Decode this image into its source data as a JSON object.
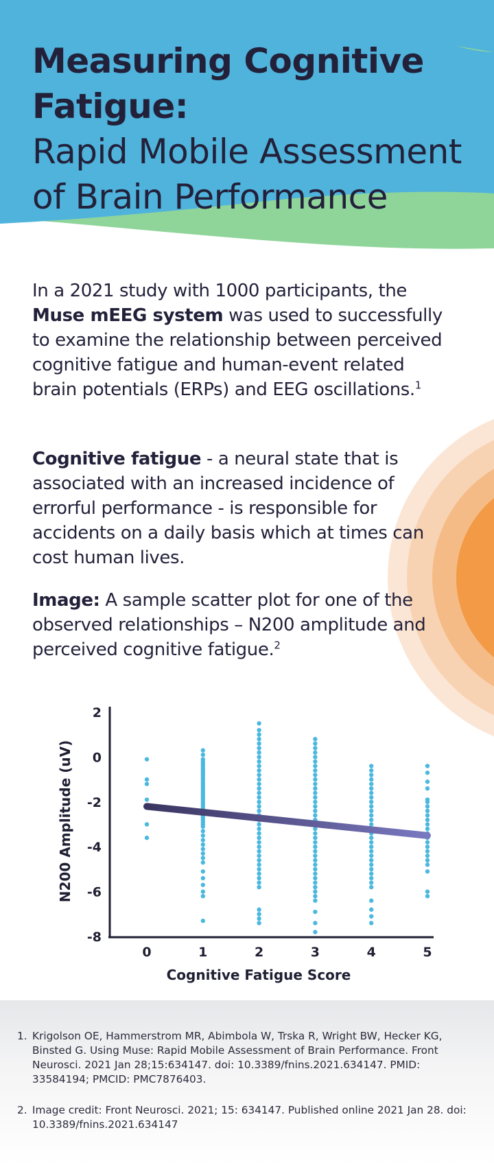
{
  "header": {
    "title_bold_line1": "Measuring Cognitive",
    "title_bold_line2": "Fatigue:",
    "title_light_line1": "Rapid Mobile Assessment",
    "title_light_line2": "of Brain Performance"
  },
  "intro": {
    "before": "In a 2021 study with 1000 participants, the ",
    "bold": "Muse mEEG system",
    "after": " was used to successfully to examine the relationship between perceived cognitive fatigue and human-event related brain potentials (ERPs) and EEG oscillations.",
    "sup": "1"
  },
  "definition": {
    "bold": "Cognitive fatigue",
    "text": " - a neural state that is associated with an increased incidence of errorful performance - is responsible for accidents on a daily basis which at times can cost human lives."
  },
  "image_caption": {
    "bold": "Image:",
    "text": " A sample scatter plot for one of the observed relationships – N200 amplitude and perceived cognitive fatigue.",
    "sup": "2"
  },
  "colors": {
    "blue_band": "#4fb3dc",
    "green_band": "#8fd59a",
    "point_color": "#4cb8e0",
    "trend_start": "#3a3560",
    "trend_end": "#7a78c0",
    "axis": "#1f1f33",
    "orange_outer": "#fbe6d6",
    "orange_inner": "#f29a45"
  },
  "chart_data": {
    "type": "scatter",
    "xlabel": "Cognitive Fatigue Score",
    "ylabel": "N200 Amplitude (uV)",
    "x_ticks": [
      "0",
      "1",
      "2",
      "3",
      "4",
      "5"
    ],
    "y_ticks": [
      "2",
      "0",
      "-2",
      "-4",
      "-6",
      "-8"
    ],
    "xlim": [
      0,
      5
    ],
    "ylim": [
      -8,
      2
    ],
    "grid": false,
    "points": [
      {
        "x": 0,
        "y": [
          -0.1,
          -1.0,
          -1.2,
          -1.9,
          -3.0,
          -3.6
        ]
      },
      {
        "x": 1,
        "y": [
          0.3,
          0.1,
          -0.1,
          -0.2,
          -0.3,
          -0.4,
          -0.5,
          -0.6,
          -0.7,
          -0.8,
          -0.9,
          -1.0,
          -1.1,
          -1.2,
          -1.3,
          -1.4,
          -1.5,
          -1.6,
          -1.7,
          -1.8,
          -1.9,
          -2.0,
          -2.1,
          -2.2,
          -2.3,
          -2.4,
          -2.5,
          -2.6,
          -2.7,
          -2.8,
          -2.9,
          -3.0,
          -3.1,
          -3.3,
          -3.5,
          -3.7,
          -3.9,
          -4.1,
          -4.3,
          -4.5,
          -4.7,
          -5.1,
          -5.4,
          -5.7,
          -6.0,
          -6.2,
          -7.3
        ]
      },
      {
        "x": 2,
        "y": [
          1.5,
          1.2,
          1.0,
          0.8,
          0.6,
          0.4,
          0.2,
          0.0,
          -0.2,
          -0.4,
          -0.6,
          -0.8,
          -1.0,
          -1.2,
          -1.4,
          -1.6,
          -1.8,
          -2.0,
          -2.2,
          -2.4,
          -2.6,
          -2.8,
          -3.0,
          -3.2,
          -3.4,
          -3.6,
          -3.8,
          -4.0,
          -4.2,
          -4.4,
          -4.6,
          -4.8,
          -5.0,
          -5.2,
          -5.4,
          -5.6,
          -5.8,
          -6.8,
          -7.0,
          -7.2,
          -7.4
        ]
      },
      {
        "x": 3,
        "y": [
          0.8,
          0.6,
          0.4,
          0.2,
          0.0,
          -0.2,
          -0.4,
          -0.6,
          -0.8,
          -1.0,
          -1.2,
          -1.4,
          -1.6,
          -1.8,
          -2.0,
          -2.2,
          -2.4,
          -2.6,
          -2.8,
          -3.0,
          -3.2,
          -3.4,
          -3.6,
          -3.8,
          -4.0,
          -4.2,
          -4.4,
          -4.6,
          -4.8,
          -5.0,
          -5.2,
          -5.4,
          -5.6,
          -5.8,
          -6.0,
          -6.2,
          -6.4,
          -6.9,
          -7.4,
          -7.8
        ]
      },
      {
        "x": 4,
        "y": [
          -0.4,
          -0.6,
          -0.8,
          -1.0,
          -1.2,
          -1.4,
          -1.6,
          -1.8,
          -2.0,
          -2.2,
          -2.4,
          -2.6,
          -2.8,
          -3.0,
          -3.2,
          -3.4,
          -3.6,
          -3.8,
          -4.0,
          -4.2,
          -4.4,
          -4.6,
          -4.8,
          -5.0,
          -5.2,
          -5.4,
          -5.6,
          -5.8,
          -6.4,
          -6.8,
          -7.1,
          -7.4
        ]
      },
      {
        "x": 5,
        "y": [
          -0.4,
          -0.7,
          -1.1,
          -1.4,
          -1.9,
          -2.0,
          -2.2,
          -2.4,
          -2.6,
          -2.8,
          -3.0,
          -3.2,
          -3.4,
          -3.6,
          -3.8,
          -4.0,
          -4.2,
          -4.4,
          -4.6,
          -4.8,
          -5.1,
          -6.0,
          -6.2
        ]
      }
    ],
    "trend_line": {
      "x": [
        0,
        5
      ],
      "y": [
        -2.2,
        -3.5
      ]
    }
  },
  "references": [
    {
      "num": "1.",
      "text": "Krigolson OE, Hammerstrom MR, Abimbola W, Trska R, Wright BW, Hecker KG, Binsted G. Using Muse: Rapid Mobile Assessment of Brain Performance. Front Neurosci. 2021 Jan 28;15:634147. doi: 10.3389/fnins.2021.634147. PMID: 33584194; PMCID: PMC7876403."
    },
    {
      "num": "2.",
      "text": "Image credit: Front Neurosci. 2021; 15: 634147. Published online 2021 Jan 28. doi: 10.3389/fnins.2021.634147"
    }
  ]
}
